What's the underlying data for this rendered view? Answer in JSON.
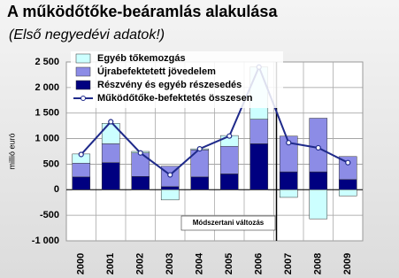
{
  "chart_data": {
    "type": "stacked_bar_line",
    "title": "A működőtőke-beáramlás alakulása",
    "subtitle": "(Első negyedévi adatok!)",
    "y_label": "millió euró",
    "annotation": "Módszertani változás",
    "categories": [
      "2000",
      "2001",
      "2002",
      "2003",
      "2004",
      "2005",
      "2006",
      "2007",
      "2008",
      "2009"
    ],
    "series": [
      {
        "name": "Egyéb tőkemozgás",
        "color": "#ccffff",
        "kind": "bar",
        "values": [
          180,
          400,
          30,
          -200,
          20,
          210,
          1020,
          -150,
          -570,
          -120
        ]
      },
      {
        "name": "Újrabefektetett jövedelem",
        "color": "#8c8ce6",
        "kind": "bar",
        "values": [
          270,
          370,
          460,
          400,
          530,
          540,
          480,
          700,
          1050,
          450
        ]
      },
      {
        "name": "Részvény és egyéb részesedés",
        "color": "#000080",
        "kind": "bar",
        "values": [
          250,
          530,
          260,
          60,
          250,
          310,
          900,
          350,
          350,
          200
        ]
      },
      {
        "name": "Működőtőke-befektetés összesen",
        "color": "#1f2a8a",
        "kind": "line",
        "values": [
          690,
          1330,
          720,
          290,
          800,
          1050,
          2400,
          920,
          820,
          530
        ]
      }
    ],
    "ylim": [
      -1000,
      2500
    ],
    "yticks": [
      {
        "value": 2500,
        "label": "2 500"
      },
      {
        "value": 2000,
        "label": "2 000"
      },
      {
        "value": 1500,
        "label": "1 500"
      },
      {
        "value": 1000,
        "label": "1 000"
      },
      500,
      0,
      -500,
      {
        "value": -1000,
        "label": "-1 000"
      }
    ],
    "grid": true
  }
}
